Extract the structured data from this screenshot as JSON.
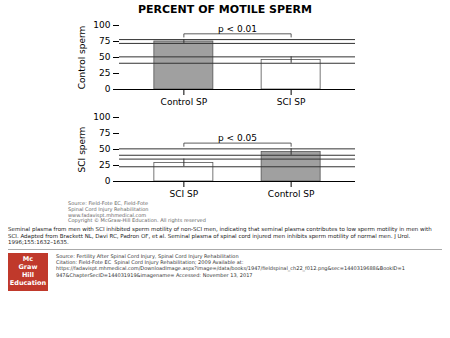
{
  "title": "PERCENT OF MOTILE SPERM",
  "background_color": "#ffffff",
  "chart_data": [
    {
      "type": "bar",
      "ylabel": "Control sperm",
      "categories": [
        "Control SP",
        "SCI SP"
      ],
      "values": [
        75,
        46
      ],
      "errors": [
        3,
        5
      ],
      "colors": [
        "#a0a0a0",
        "#ffffff"
      ],
      "ylim": [
        0,
        100
      ],
      "yticks": [
        0,
        25,
        50,
        75,
        100
      ],
      "annotations": [
        {
          "text": "p < 0.01",
          "from": "Control SP",
          "to": "SCI SP",
          "y": 87
        }
      ]
    },
    {
      "type": "bar",
      "ylabel": "SCI sperm",
      "categories": [
        "SCI SP",
        "Control SP"
      ],
      "values": [
        29,
        46
      ],
      "errors": [
        6,
        5
      ],
      "colors": [
        "#ffffff",
        "#a0a0a0"
      ],
      "ylim": [
        0,
        100
      ],
      "yticks": [
        0,
        25,
        50,
        75,
        100
      ],
      "annotations": [
        {
          "text": "p < 0.05",
          "from": "SCI SP",
          "to": "Control SP",
          "y": 60
        }
      ],
      "note": "Source: Field-Fote EC, Field-Fote\nSpinal Cord Injury Rehabilitation\nwww.fadavispt.mhmedical.com\nCopyright © McGraw-Hill Education. All rights reserved"
    }
  ],
  "caption": "Seminal plasma from men with SCI inhibited sperm motility of non-SCI men, indicating that seminal plasma contributes to low sperm motility in men with\nSCI. Adapted from Brackett NL, Davi RC, Padron OF, et al. Seminal plasma of spinal cord injured men inhibits sperm motility of normal men. J Urol.\n1996;155:1632–1635.",
  "source_text": "Source: Fertility After Spinal Cord Injury, Spinal Cord Injury Rehabilitation\nCitation: Field-Fote EC  Spinal Cord Injury Rehabilitation; 2009 Available at:\nhttps://fadavispt.mhmedical.com/DownloadImage.aspx?image=/data/books/1947/fieldspinal_ch22_f012.png&sec=1440319688&BookID=1\n947&ChapterSecID=144031919&imagename= Accessed: November 13, 2017",
  "logo": {
    "text": "Mc\nGraw\nHill\nEducation",
    "color": "#c0392b"
  }
}
